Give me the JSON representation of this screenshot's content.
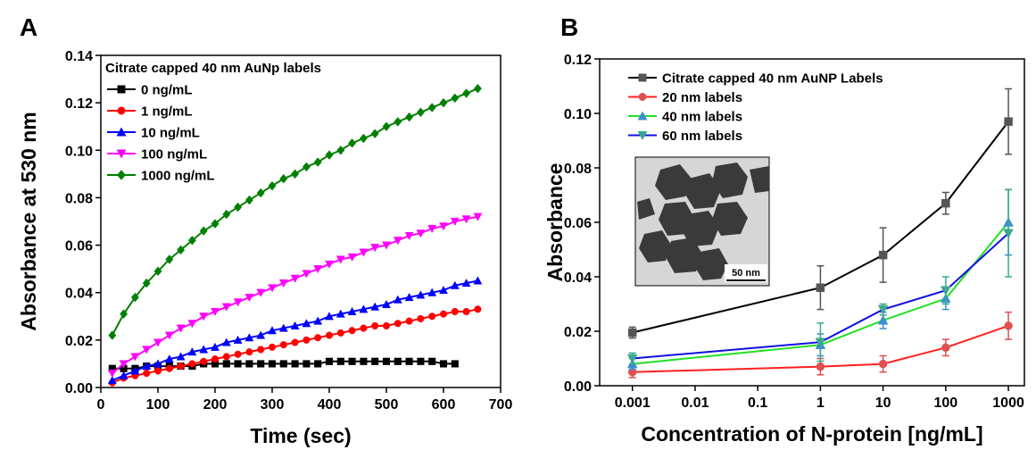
{
  "chart_data": [
    {
      "type": "line",
      "panel_label": "A",
      "x_label": "Time (sec)",
      "y_label": "Absorbance at 530 nm",
      "legend_title": "Citrate capped 40 nm AuNp labels",
      "legend": "upper left",
      "x": [
        20,
        40,
        60,
        80,
        100,
        120,
        140,
        160,
        180,
        200,
        220,
        240,
        260,
        280,
        300,
        320,
        340,
        360,
        380,
        400,
        420,
        440,
        460,
        480,
        500,
        520,
        540,
        560,
        580,
        600,
        620,
        640,
        660
      ],
      "xlim": [
        0,
        700
      ],
      "xticks": [
        0,
        100,
        200,
        300,
        400,
        500,
        600,
        700
      ],
      "ylim": [
        0,
        0.14
      ],
      "yticks": [
        {
          "value": 0,
          "label": "0.00"
        },
        0.02,
        0.04,
        0.06,
        0.08,
        {
          "value": 0.1,
          "label": "0.10"
        },
        0.12,
        0.14
      ],
      "series": [
        {
          "name": "0 ng/mL",
          "color": "#000000",
          "marker": "square",
          "values": [
            0.008,
            0.008,
            0.008,
            0.009,
            0.009,
            0.009,
            0.009,
            0.009,
            0.01,
            0.01,
            0.01,
            0.01,
            0.01,
            0.01,
            0.01,
            0.01,
            0.01,
            0.01,
            0.01,
            0.011,
            0.011,
            0.011,
            0.011,
            0.011,
            0.011,
            0.011,
            0.011,
            0.011,
            0.011,
            0.01,
            0.01,
            null,
            null
          ]
        },
        {
          "name": "1 ng/mL",
          "color": "#ff0000",
          "marker": "circle",
          "values": [
            0.002,
            0.004,
            0.005,
            0.006,
            0.007,
            0.008,
            0.009,
            0.01,
            0.011,
            0.012,
            0.013,
            0.014,
            0.015,
            0.016,
            0.017,
            0.018,
            0.019,
            0.02,
            0.021,
            0.022,
            0.023,
            0.024,
            0.025,
            0.026,
            0.026,
            0.027,
            0.028,
            0.029,
            0.03,
            0.031,
            0.032,
            0.032,
            0.033
          ]
        },
        {
          "name": "10 ng/mL",
          "color": "#0000ff",
          "marker": "triangle-up",
          "values": [
            0.003,
            0.005,
            0.007,
            0.009,
            0.01,
            0.012,
            0.013,
            0.015,
            0.016,
            0.017,
            0.019,
            0.02,
            0.021,
            0.022,
            0.024,
            0.025,
            0.026,
            0.027,
            0.028,
            0.03,
            0.031,
            0.032,
            0.033,
            0.034,
            0.035,
            0.037,
            0.038,
            0.039,
            0.04,
            0.041,
            0.043,
            0.044,
            0.045
          ]
        },
        {
          "name": "100 ng/mL",
          "color": "#ff00ff",
          "marker": "triangle-down",
          "values": [
            0.006,
            0.01,
            0.013,
            0.016,
            0.019,
            0.022,
            0.025,
            0.027,
            0.03,
            0.032,
            0.034,
            0.036,
            0.038,
            0.04,
            0.042,
            0.044,
            0.046,
            0.048,
            0.05,
            0.052,
            0.054,
            0.055,
            0.057,
            0.059,
            0.06,
            0.062,
            0.064,
            0.065,
            0.067,
            0.068,
            0.07,
            0.071,
            0.072
          ]
        },
        {
          "name": "1000 ng/mL",
          "color": "#008000",
          "marker": "diamond",
          "values": [
            0.022,
            0.031,
            0.038,
            0.044,
            0.049,
            0.054,
            0.058,
            0.062,
            0.066,
            0.069,
            0.073,
            0.076,
            0.079,
            0.082,
            0.085,
            0.088,
            0.09,
            0.093,
            0.095,
            0.098,
            0.1,
            0.103,
            0.105,
            0.107,
            0.11,
            0.112,
            0.114,
            0.116,
            0.118,
            0.12,
            0.122,
            0.124,
            0.126
          ]
        }
      ]
    },
    {
      "type": "line",
      "panel_label": "B",
      "x_label": "Concentration of N-protein [ng/mL]",
      "y_label": "Absorbance",
      "legend": "upper left",
      "log_x": true,
      "inset_scale": "50 nm",
      "x": [
        0.001,
        1,
        10,
        100,
        1000
      ],
      "xlim": [
        0.0003,
        1800
      ],
      "xticks": [
        0.001,
        0.01,
        0.1,
        1,
        10,
        100,
        1000
      ],
      "ylim": [
        0,
        0.12
      ],
      "yticks": [
        {
          "value": 0,
          "label": "0.00"
        },
        0.02,
        0.04,
        0.06,
        0.08,
        {
          "value": 0.1,
          "label": "0.10"
        },
        0.12
      ],
      "series": [
        {
          "name": "Citrate capped 40 nm AuNP Labels",
          "color": "#000000",
          "marker_color": "#555555",
          "marker": "square",
          "values": [
            0.0195,
            0.036,
            0.048,
            0.067,
            0.097
          ],
          "errors": [
            0.002,
            0.008,
            0.01,
            0.004,
            0.012
          ]
        },
        {
          "name": "20 nm labels",
          "color": "#ff2020",
          "marker_color": "#e05050",
          "marker": "circle",
          "values": [
            0.005,
            0.007,
            0.008,
            0.014,
            0.022
          ],
          "errors": [
            0.002,
            0.003,
            0.003,
            0.003,
            0.005
          ]
        },
        {
          "name": "40 nm labels",
          "color": "#22e022",
          "marker_color": "#3a8fd0",
          "marker": "triangle-up",
          "values": [
            0.008,
            0.015,
            0.024,
            0.032,
            0.06
          ],
          "errors": [
            0.002,
            0.004,
            0.003,
            0.004,
            0.012
          ]
        },
        {
          "name": "60 nm labels",
          "color": "#1010e0",
          "marker_color": "#3aa890",
          "marker": "triangle-down",
          "values": [
            0.01,
            0.016,
            0.028,
            0.035,
            0.056
          ],
          "errors": [
            0.002,
            0.007,
            0.002,
            0.005,
            0.016
          ]
        }
      ]
    }
  ]
}
